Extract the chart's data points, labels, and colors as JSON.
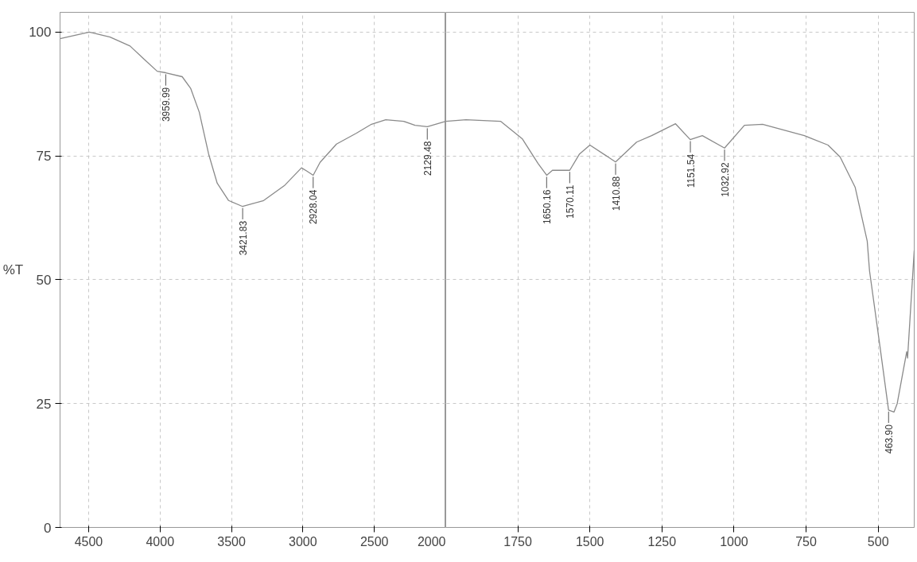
{
  "chart_data": [
    {
      "type": "line",
      "ylabel": "%T",
      "xlim": [
        4700,
        2000
      ],
      "ylim": [
        0,
        104
      ],
      "xticks": [
        4500,
        4000,
        3500,
        3000,
        2500,
        2000
      ],
      "yticks": [
        0,
        25,
        50,
        75,
        100
      ],
      "grid": true,
      "tick_labels": "xy",
      "series": [
        {
          "color": "#8a8a8a",
          "x": [
            4700,
            4495,
            4350,
            4210,
            4110,
            4020,
            3960,
            3845,
            3785,
            3725,
            3660,
            3600,
            3520,
            3422,
            3275,
            3130,
            3010,
            2970,
            2928,
            2880,
            2765,
            2625,
            2520,
            2420,
            2295,
            2215,
            2129,
            2010,
            2000
          ],
          "values": [
            98.7,
            100,
            99,
            97.2,
            94.5,
            92.1,
            91.8,
            91,
            88.6,
            83.8,
            75.4,
            69.5,
            66,
            64.8,
            66,
            69,
            72.6,
            71.9,
            71.1,
            73.7,
            77.4,
            79.6,
            81.4,
            82.3,
            82,
            81.2,
            80.9,
            81.9,
            82
          ]
        }
      ],
      "annotations": [
        {
          "text": "3959.99",
          "x": 3959.99,
          "y": 91.8
        },
        {
          "text": "3421.83",
          "x": 3421.83,
          "y": 64.8
        },
        {
          "text": "2928.04",
          "x": 2928.04,
          "y": 71.1
        },
        {
          "text": "2129.48",
          "x": 2129.48,
          "y": 80.9
        }
      ]
    },
    {
      "type": "line",
      "xlim": [
        2000,
        375
      ],
      "ylim": [
        0,
        104
      ],
      "xticks": [
        1750,
        1500,
        1250,
        1000,
        750,
        500
      ],
      "grid": true,
      "tick_labels": "x",
      "series": [
        {
          "color": "#8a8a8a",
          "x": [
            2000,
            1930,
            1810,
            1735,
            1680,
            1650,
            1630,
            1570,
            1536,
            1500,
            1411,
            1338,
            1286,
            1203,
            1152,
            1110,
            1033,
            964,
            901,
            756,
            674,
            632,
            580,
            538,
            530,
            494,
            464,
            445,
            434,
            401,
            398,
            375
          ],
          "values": [
            82,
            82.3,
            82,
            78.5,
            73.5,
            71.1,
            72.1,
            72.1,
            75.4,
            77.2,
            73.8,
            77.8,
            79.1,
            81.5,
            78.3,
            79.1,
            76.6,
            81.2,
            81.4,
            79.1,
            77.2,
            74.8,
            68.7,
            57.8,
            51.8,
            36.6,
            23.7,
            23.3,
            25,
            35.5,
            34.2,
            55.9
          ]
        }
      ],
      "annotations": [
        {
          "text": "1650.16",
          "x": 1650.16,
          "y": 71.1
        },
        {
          "text": "1570.11",
          "x": 1570.11,
          "y": 72.1
        },
        {
          "text": "1410.88",
          "x": 1410.88,
          "y": 73.8
        },
        {
          "text": "1151.54",
          "x": 1151.54,
          "y": 78.3
        },
        {
          "text": "1032.92",
          "x": 1032.92,
          "y": 76.6
        },
        {
          "text": "463.90",
          "x": 463.9,
          "y": 23.7
        }
      ]
    }
  ]
}
